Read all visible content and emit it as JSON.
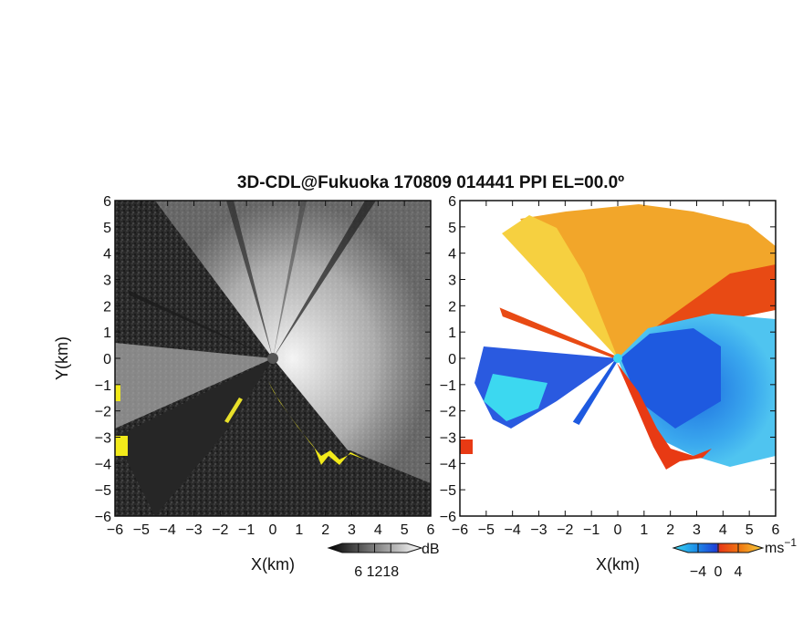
{
  "chart_data": [
    {
      "type": "heatmap",
      "title": "3D-CDL@Fukuoka 170809 014441 PPI EL=00.0º",
      "panel": "left",
      "quantity": "backscatter intensity",
      "xlabel": "X(km)",
      "ylabel": "Y(km)",
      "xlim": [
        -6,
        6
      ],
      "ylim": [
        -6,
        6
      ],
      "xticks": [
        "−6",
        "−5",
        "−4",
        "−3",
        "−2",
        "−1",
        "0",
        "1",
        "2",
        "3",
        "4",
        "5",
        "6"
      ],
      "yticks": [
        "6",
        "5",
        "4",
        "3",
        "2",
        "1",
        "0",
        "−1",
        "−2",
        "−3",
        "−4",
        "−5",
        "−6"
      ],
      "colorbar": {
        "unit": "dB",
        "ticks": [
          "6",
          "12",
          "18"
        ],
        "range": [
          0,
          24
        ],
        "colormap": "grayscale"
      },
      "highlight_color": "#f2ea1a"
    },
    {
      "type": "heatmap",
      "panel": "right",
      "quantity": "radial velocity",
      "xlabel": "X(km)",
      "xlim": [
        -6,
        6
      ],
      "ylim": [
        -6,
        6
      ],
      "xticks": [
        "−6",
        "−5",
        "−4",
        "−3",
        "−2",
        "−1",
        "0",
        "1",
        "2",
        "3",
        "4",
        "5",
        "6"
      ],
      "yticks": [
        "6",
        "5",
        "4",
        "3",
        "2",
        "1",
        "0",
        "−1",
        "−2",
        "−3",
        "−4",
        "−5",
        "−6"
      ],
      "colorbar": {
        "unit": "ms",
        "unit_superscript": "−1",
        "ticks": [
          "−4",
          "0",
          "4"
        ],
        "range": [
          -6,
          6
        ],
        "colors": [
          "#3cd8f0",
          "#1e8fe8",
          "#1d3fd6",
          "#e83a14",
          "#f07a12",
          "#f5b020"
        ]
      }
    }
  ]
}
